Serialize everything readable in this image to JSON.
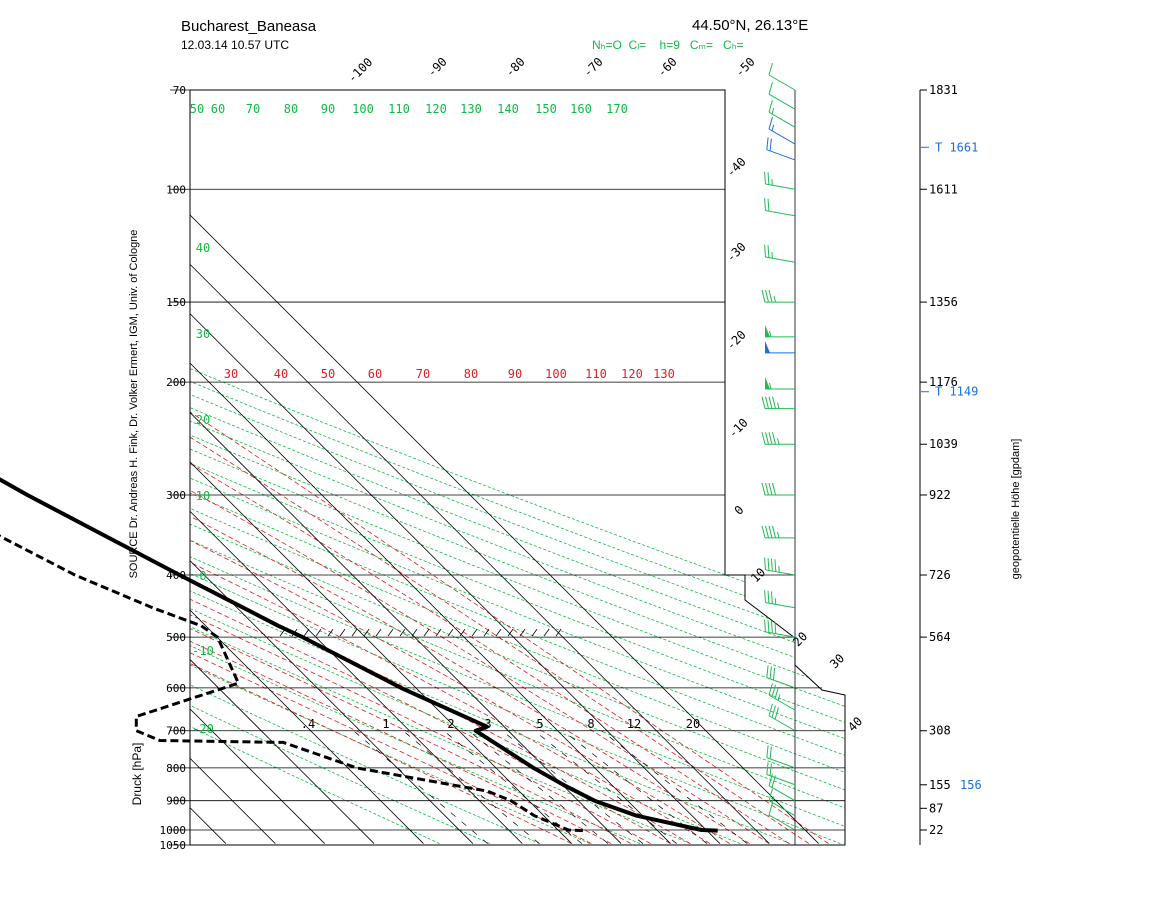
{
  "header": {
    "station": "Bucharest_Baneasa",
    "time": "12.03.14  10.57 UTC",
    "coords": "44.50°N, 26.13°E",
    "clouds": "Nₕ=O  Cₗ=    h=9   Cₘ=   Cₕ="
  },
  "source_text": "SOURCE Dr. Andreas H. Fink, Dr. Volker Ermert, IGM, Univ. of Cologne",
  "colors": {
    "axis": "#000000",
    "dry_adiabat": "#11bb44",
    "moist_adiabat": "#dd2222",
    "wind": "#22bb55",
    "wind_highlight": "#1a6fe0",
    "tropopause": "#1a6fe0"
  },
  "chart_data": {
    "type": "line",
    "diagram": "skew-T log-p",
    "ylabel": "Druck [hPa]",
    "y2label": "geopotentielle Höhe [gpdam]",
    "y_scale": "log",
    "pressure_ticks": [
      70,
      100,
      150,
      200,
      300,
      400,
      500,
      600,
      700,
      800,
      900,
      1000,
      1050
    ],
    "height_ticks": [
      {
        "p": 70,
        "label": "1831"
      },
      {
        "p": 100,
        "label": "1611"
      },
      {
        "p": 150,
        "label": "1356"
      },
      {
        "p": 200,
        "label": "1176"
      },
      {
        "p": 250,
        "label": "1039"
      },
      {
        "p": 300,
        "label": "922"
      },
      {
        "p": 400,
        "label": "726"
      },
      {
        "p": 500,
        "label": "564"
      },
      {
        "p": 700,
        "label": "308"
      },
      {
        "p": 850,
        "label": "155"
      },
      {
        "p": 925,
        "label": "87"
      },
      {
        "p": 1000,
        "label": "22"
      }
    ],
    "tropopause": [
      {
        "p": 86,
        "label": "T 1661"
      },
      {
        "p": 207,
        "label": "T 1149"
      },
      {
        "p": 850,
        "label": "156"
      }
    ],
    "isotherm_labels": [
      "-100",
      "-90",
      "-80",
      "-70",
      "-60",
      "-50",
      "-40",
      "-30",
      "-20",
      "-10",
      "0",
      "10",
      "20",
      "30",
      "40"
    ],
    "dry_adiabat_top_labels": [
      "50",
      "60",
      "70",
      "80",
      "90",
      "100",
      "110",
      "120",
      "130",
      "140",
      "150",
      "160",
      "170"
    ],
    "dry_adiabat_left_labels": [
      "40",
      "30",
      "20",
      "10",
      "0",
      "-10",
      "-20"
    ],
    "moist_adiabat_labels": [
      "30",
      "40",
      "50",
      "60",
      "70",
      "80",
      "90",
      "100",
      "110",
      "120",
      "130"
    ],
    "mixing_ratio_labels": [
      ".4",
      "1",
      "2",
      "3",
      "5",
      "8",
      "12",
      "20"
    ],
    "temperature_profile": [
      {
        "p": 1002,
        "t": 22.2
      },
      {
        "p": 1000,
        "t": 19.0
      },
      {
        "p": 950,
        "t": 8.8
      },
      {
        "p": 900,
        "t": 3.3
      },
      {
        "p": 850,
        "t": 0.2
      },
      {
        "p": 800,
        "t": -2.4
      },
      {
        "p": 700,
        "t": -6.6
      },
      {
        "p": 690,
        "t": -3.5
      },
      {
        "p": 600,
        "t": -13.0
      },
      {
        "p": 500,
        "t": -22.7
      },
      {
        "p": 480,
        "t": -25.3
      },
      {
        "p": 450,
        "t": -28.7
      },
      {
        "p": 400,
        "t": -35.0
      },
      {
        "p": 350,
        "t": -41.8
      },
      {
        "p": 300,
        "t": -49.6
      },
      {
        "p": 250,
        "t": -57.6
      },
      {
        "p": 220,
        "t": -62.3
      },
      {
        "p": 205,
        "t": -65.0
      },
      {
        "p": 195,
        "t": -64.2
      },
      {
        "p": 187,
        "t": -62.6
      },
      {
        "p": 170,
        "t": -52.1
      },
      {
        "p": 150,
        "t": -51.5
      },
      {
        "p": 130,
        "t": -52.5
      },
      {
        "p": 115,
        "t": -48.9
      },
      {
        "p": 100,
        "t": -55.0
      },
      {
        "p": 92,
        "t": -57.9
      },
      {
        "p": 80,
        "t": -57.3
      },
      {
        "p": 70,
        "t": -57.9
      }
    ],
    "dewpoint_profile": [
      {
        "p": 1002,
        "t": -5.1
      },
      {
        "p": 1000,
        "t": -7.9
      },
      {
        "p": 950,
        "t": -11.9
      },
      {
        "p": 900,
        "t": -13.6
      },
      {
        "p": 870,
        "t": -16.4
      },
      {
        "p": 800,
        "t": -38.2
      },
      {
        "p": 730,
        "t": -47.9
      },
      {
        "p": 725,
        "t": -72.5
      },
      {
        "p": 700,
        "t": -75.3
      },
      {
        "p": 665,
        "t": -72.4
      },
      {
        "p": 590,
        "t": -45.0
      },
      {
        "p": 500,
        "t": -39.9
      },
      {
        "p": 480,
        "t": -40.9
      },
      {
        "p": 450,
        "t": -47.1
      },
      {
        "p": 400,
        "t": -56.2
      },
      {
        "p": 350,
        "t": -63.2
      },
      {
        "p": 300,
        "t": -70.6
      },
      {
        "p": 265,
        "t": -74.8
      },
      {
        "p": 240,
        "t": -77.2
      },
      {
        "p": 230,
        "t": -75.3
      },
      {
        "p": 210,
        "t": -80.0
      },
      {
        "p": 180,
        "t": -88.5
      },
      {
        "p": 150,
        "t": -89.1
      },
      {
        "p": 135,
        "t": -90.6
      },
      {
        "p": 115,
        "t": -90.7
      },
      {
        "p": 100,
        "t": -97.7
      },
      {
        "p": 90,
        "t": -100.0
      },
      {
        "p": 80,
        "t": -101.3
      },
      {
        "p": 70,
        "t": -105.5
      }
    ],
    "wind_profile": [
      {
        "p": 1000,
        "dir": 300,
        "spd": 10
      },
      {
        "p": 950,
        "dir": 300,
        "spd": 15
      },
      {
        "p": 900,
        "dir": 300,
        "spd": 20
      },
      {
        "p": 850,
        "dir": 290,
        "spd": 20
      },
      {
        "p": 800,
        "dir": 290,
        "spd": 20
      },
      {
        "p": 700,
        "dir": 300,
        "spd": 30
      },
      {
        "p": 650,
        "dir": 300,
        "spd": 35
      },
      {
        "p": 600,
        "dir": 290,
        "spd": 30
      },
      {
        "p": 500,
        "dir": 280,
        "spd": 40
      },
      {
        "p": 450,
        "dir": 280,
        "spd": 35
      },
      {
        "p": 400,
        "dir": 280,
        "spd": 45
      },
      {
        "p": 350,
        "dir": 270,
        "spd": 45
      },
      {
        "p": 300,
        "dir": 270,
        "spd": 40
      },
      {
        "p": 250,
        "dir": 270,
        "spd": 45
      },
      {
        "p": 220,
        "dir": 270,
        "spd": 45
      },
      {
        "p": 205,
        "dir": 270,
        "spd": 55
      },
      {
        "p": 180,
        "dir": 270,
        "spd": 50,
        "highlight": true
      },
      {
        "p": 170,
        "dir": 270,
        "spd": 55
      },
      {
        "p": 150,
        "dir": 270,
        "spd": 35
      },
      {
        "p": 130,
        "dir": 280,
        "spd": 25
      },
      {
        "p": 110,
        "dir": 280,
        "spd": 20
      },
      {
        "p": 100,
        "dir": 280,
        "spd": 25
      },
      {
        "p": 90,
        "dir": 290,
        "spd": 20,
        "highlight": true
      },
      {
        "p": 85,
        "dir": 300,
        "spd": 15,
        "highlight": true
      },
      {
        "p": 80,
        "dir": 300,
        "spd": 15
      },
      {
        "p": 75,
        "dir": 300,
        "spd": 10
      },
      {
        "p": 70,
        "dir": 300,
        "spd": 10
      }
    ]
  }
}
